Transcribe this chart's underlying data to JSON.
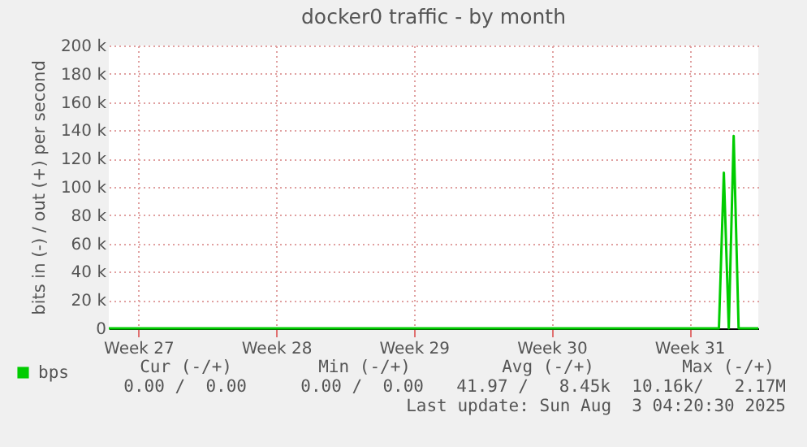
{
  "chart_data": {
    "type": "line",
    "title": "docker0 traffic - by month",
    "ylabel": "bits in (-) / out (+) per second",
    "categories": [
      null,
      null,
      null,
      null,
      null,
      null,
      "Week 27",
      null,
      null,
      null,
      null,
      null,
      null,
      null,
      null,
      null,
      null,
      null,
      null,
      null,
      null,
      null,
      null,
      null,
      null,
      null,
      null,
      null,
      null,
      null,
      null,
      null,
      null,
      null,
      "Week 28",
      null,
      null,
      null,
      null,
      null,
      null,
      null,
      null,
      null,
      null,
      null,
      null,
      null,
      null,
      null,
      null,
      null,
      null,
      null,
      null,
      null,
      null,
      null,
      null,
      null,
      null,
      null,
      "Week 29",
      null,
      null,
      null,
      null,
      null,
      null,
      null,
      null,
      null,
      null,
      null,
      null,
      null,
      null,
      null,
      null,
      null,
      null,
      null,
      null,
      null,
      null,
      null,
      null,
      null,
      null,
      null,
      "Week 30",
      null,
      null,
      null,
      null,
      null,
      null,
      null,
      null,
      null,
      null,
      null,
      null,
      null,
      null,
      null,
      null,
      null,
      null,
      null,
      null,
      null,
      null,
      null,
      null,
      null,
      null,
      null,
      "Week 31",
      null,
      null,
      null,
      null,
      null,
      null,
      null,
      null,
      null,
      null,
      null,
      null,
      null,
      null
    ],
    "series": [
      {
        "name": "bps",
        "color": "#00cc00",
        "values": [
          0,
          0,
          0,
          0,
          0,
          0,
          0,
          0,
          0,
          0,
          0,
          0,
          0,
          0,
          0,
          0,
          0,
          0,
          0,
          0,
          0,
          0,
          0,
          0,
          0,
          0,
          0,
          0,
          0,
          0,
          0,
          0,
          0,
          0,
          0,
          0,
          0,
          0,
          0,
          0,
          0,
          0,
          0,
          0,
          0,
          0,
          0,
          0,
          0,
          0,
          0,
          0,
          0,
          0,
          0,
          0,
          0,
          0,
          0,
          0,
          0,
          0,
          0,
          0,
          0,
          0,
          0,
          0,
          0,
          0,
          0,
          0,
          0,
          0,
          0,
          0,
          0,
          0,
          0,
          0,
          0,
          0,
          0,
          0,
          0,
          0,
          0,
          0,
          0,
          0,
          0,
          0,
          0,
          0,
          0,
          0,
          0,
          0,
          0,
          0,
          0,
          0,
          0,
          0,
          0,
          0,
          0,
          0,
          0,
          0,
          0,
          0,
          0,
          0,
          0,
          0,
          0,
          0,
          0,
          0,
          0,
          0,
          0,
          0,
          0,
          110000,
          0,
          136000,
          0,
          0,
          0,
          0,
          0
        ]
      }
    ],
    "ylim": [
      0,
      200000
    ],
    "yticks": [
      0,
      {
        "value": 20000,
        "label": "20 k"
      },
      {
        "value": 40000,
        "label": "40 k"
      },
      {
        "value": 60000,
        "label": "60 k"
      },
      {
        "value": 80000,
        "label": "80 k"
      },
      {
        "value": 100000,
        "label": "100 k"
      },
      {
        "value": 120000,
        "label": "120 k"
      },
      {
        "value": 140000,
        "label": "140 k"
      },
      {
        "value": 160000,
        "label": "160 k"
      },
      {
        "value": 180000,
        "label": "180 k"
      },
      {
        "value": 200000,
        "label": "200 k"
      }
    ],
    "grid": true,
    "legend": "bottom left",
    "annotations": [
      "Cur (-/+)",
      "Min (-/+)",
      "Avg (-/+)",
      "Max (-/+)",
      "0.00 /  0.00",
      "0.00 /  0.00",
      "41.97 /   8.45k",
      "10.16k/   2.17M",
      "Last update: Sun Aug  3 04:20:30 2025"
    ]
  }
}
